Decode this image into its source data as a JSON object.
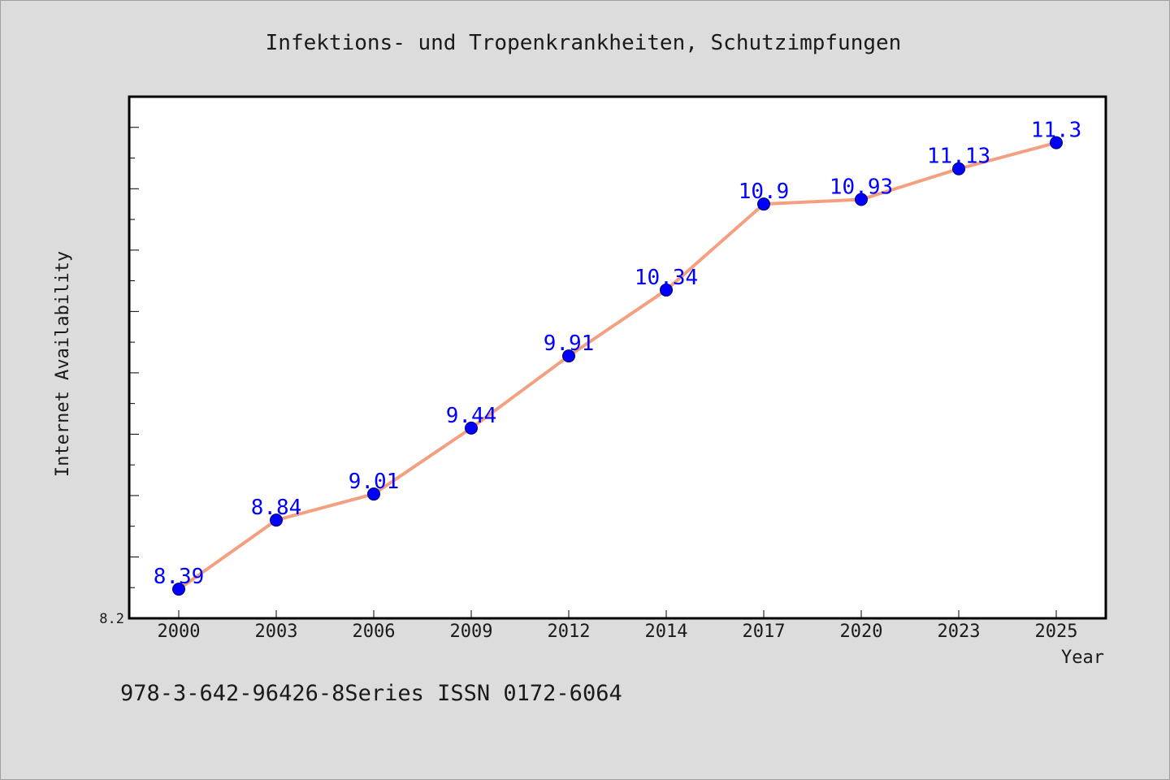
{
  "chart_data": {
    "type": "line",
    "title": "Infektions- und Tropenkrankheiten, Schutzimpfungen",
    "xlabel": "Year",
    "ylabel": "Internet Availability",
    "categories": [
      "2000",
      "2003",
      "2006",
      "2009",
      "2012",
      "2014",
      "2017",
      "2020",
      "2023",
      "2025"
    ],
    "values": [
      8.39,
      8.84,
      9.01,
      9.44,
      9.91,
      10.34,
      10.9,
      10.93,
      11.13,
      11.3
    ],
    "data_labels": [
      "8.39",
      "8.84",
      "9.01",
      "9.44",
      "9.91",
      "10.34",
      "10.9",
      "10.93",
      "11.13",
      "11.3"
    ],
    "ylim": [
      8.2,
      11.6
    ],
    "y_min_label": "8.2",
    "grid": false,
    "line_color": "#f4a080",
    "marker_color": "#0000ff",
    "label_color": "#0000ff"
  },
  "footer": {
    "text": "978-3-642-96426-8Series ISSN 0172-6064"
  }
}
